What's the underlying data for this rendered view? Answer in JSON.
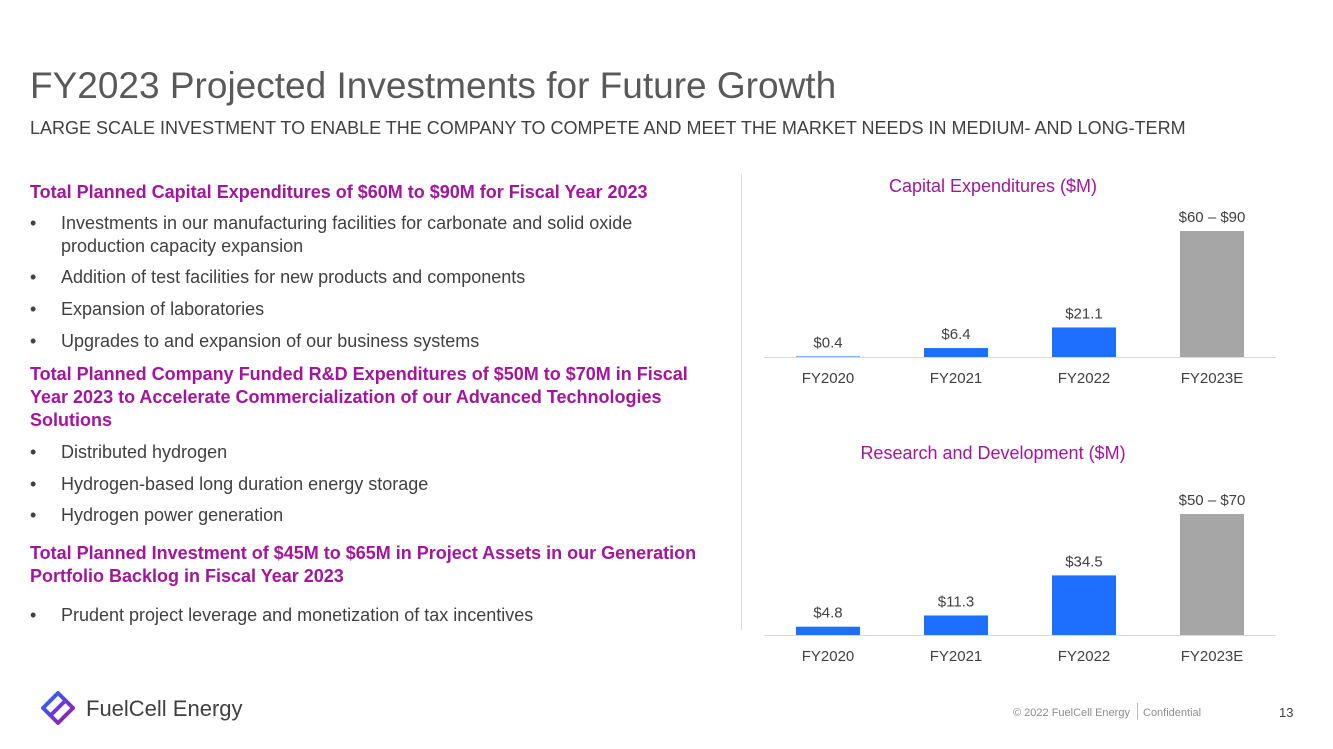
{
  "slide": {
    "title": "FY2023 Projected Investments for Future Growth",
    "subtitle": "LARGE SCALE INVESTMENT TO ENABLE THE COMPANY TO COMPETE AND MEET THE MARKET NEEDS IN MEDIUM- AND LONG-TERM",
    "accent_color": "#a3159d",
    "sections": [
      {
        "heading": "Total Planned Capital Expenditures of $60M to $90M for Fiscal Year 2023",
        "bullets": [
          "Investments in our manufacturing facilities for carbonate and solid oxide production capacity expansion",
          "Addition of test facilities for new products and components",
          "Expansion of laboratories",
          "Upgrades to and expansion of our business systems"
        ]
      },
      {
        "heading": "Total Planned Company Funded R&D Expenditures of $50M to $70M in Fiscal Year 2023 to Accelerate Commercialization of our Advanced Technologies Solutions",
        "bullets": [
          "Distributed hydrogen",
          "Hydrogen-based long duration energy storage",
          "Hydrogen power generation"
        ]
      },
      {
        "heading": "Total Planned Investment of $45M to $65M in Project Assets in our Generation Portfolio Backlog in Fiscal Year 2023",
        "bullets": [
          "Prudent project leverage and monetization of tax incentives"
        ]
      }
    ]
  },
  "chart_data": [
    {
      "type": "bar",
      "title": "Capital Expenditures ($M)",
      "categories": [
        "FY2020",
        "FY2021",
        "FY2022",
        "FY2023E"
      ],
      "values": [
        0.4,
        6.4,
        21.1,
        90
      ],
      "value_labels": [
        "$0.4",
        "$6.4",
        "$21.1",
        "$60 – $90"
      ],
      "bar_colors": [
        "#1f6fff",
        "#1f6fff",
        "#1f6fff",
        "#a6a6a6"
      ],
      "ylim": [
        0,
        90
      ],
      "grid": false,
      "legend": "none"
    },
    {
      "type": "bar",
      "title": "Research and Development ($M)",
      "categories": [
        "FY2020",
        "FY2021",
        "FY2022",
        "FY2023E"
      ],
      "values": [
        4.8,
        11.3,
        34.5,
        70
      ],
      "value_labels": [
        "$4.8",
        "$11.3",
        "$34.5",
        "$50 – $70"
      ],
      "bar_colors": [
        "#1f6fff",
        "#1f6fff",
        "#1f6fff",
        "#a6a6a6"
      ],
      "ylim": [
        0,
        70
      ],
      "grid": false,
      "legend": "none"
    }
  ],
  "footer": {
    "brand": "FuelCell Energy",
    "logo_icon": "fuelcell-logo-icon",
    "copyright": "© 2022 FuelCell Energy",
    "confidential": "Confidential",
    "page_number": "13"
  }
}
